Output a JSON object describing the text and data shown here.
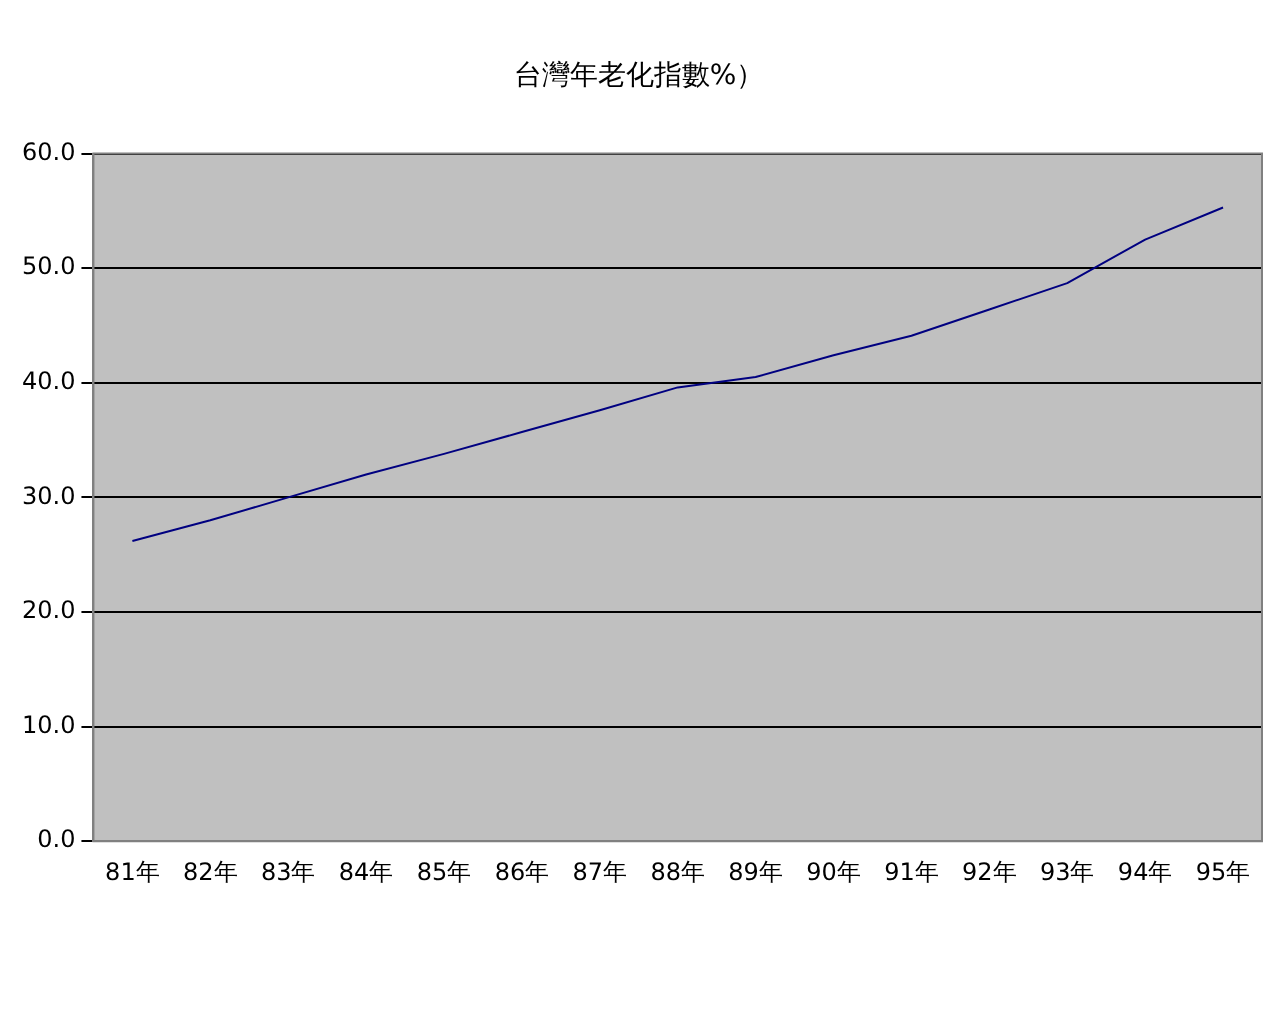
{
  "chart_data": {
    "type": "line",
    "title": "台灣年老化指數%）",
    "categories": [
      "81年",
      "82年",
      "83年",
      "84年",
      "85年",
      "86年",
      "87年",
      "88年",
      "89年",
      "90年",
      "91年",
      "92年",
      "93年",
      "94年",
      "95年"
    ],
    "series": [
      {
        "color": "#000080",
        "values": [
          26.2,
          28.0,
          30.0,
          32.0,
          33.8,
          35.7,
          37.6,
          39.6,
          40.5,
          42.4,
          44.1,
          46.4,
          48.7,
          52.5,
          55.3
        ]
      }
    ],
    "ylim": [
      0,
      60
    ],
    "yticks": [
      {
        "value": 0,
        "label": "0.0"
      },
      {
        "value": 10,
        "label": "10.0"
      },
      {
        "value": 20,
        "label": "20.0"
      },
      {
        "value": 30,
        "label": "30.0"
      },
      {
        "value": 40,
        "label": "40.0"
      },
      {
        "value": 50,
        "label": "50.0"
      },
      {
        "value": 60,
        "label": "60.0"
      }
    ],
    "grid": "y",
    "legend": false,
    "marker": "none",
    "line_style": "solid"
  }
}
